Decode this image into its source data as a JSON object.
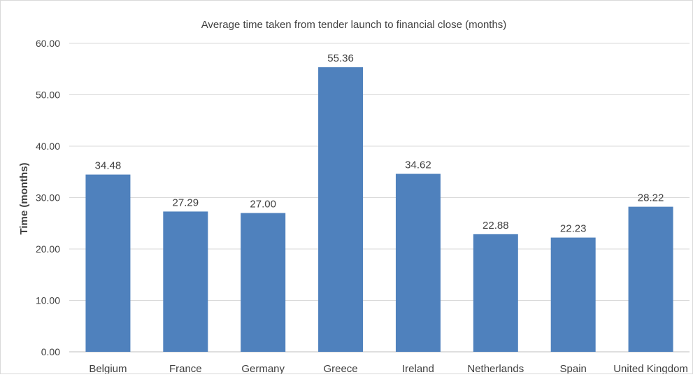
{
  "chart_data": {
    "type": "bar",
    "title": "Average time taken from tender launch to financial close (months)",
    "xlabel": "",
    "ylabel": "Time (months)",
    "categories": [
      "Belgium",
      "France",
      "Germany",
      "Greece",
      "Ireland",
      "Netherlands",
      "Spain",
      "United Kingdom"
    ],
    "values": [
      34.48,
      27.29,
      27.0,
      55.36,
      34.62,
      22.88,
      22.23,
      28.22
    ],
    "data_labels": [
      "34.48",
      "27.29",
      "27.00",
      "55.36",
      "34.62",
      "22.88",
      "22.23",
      "28.22"
    ],
    "ylim": [
      0,
      60
    ],
    "yticks": [
      "0.00",
      "10.00",
      "20.00",
      "30.00",
      "40.00",
      "50.00",
      "60.00"
    ],
    "grid": true,
    "legend": "none",
    "colors": {
      "bar": "#4f81bd",
      "grid": "#d9d9d9",
      "text": "#404040",
      "axis": "#bfbfbf"
    }
  }
}
